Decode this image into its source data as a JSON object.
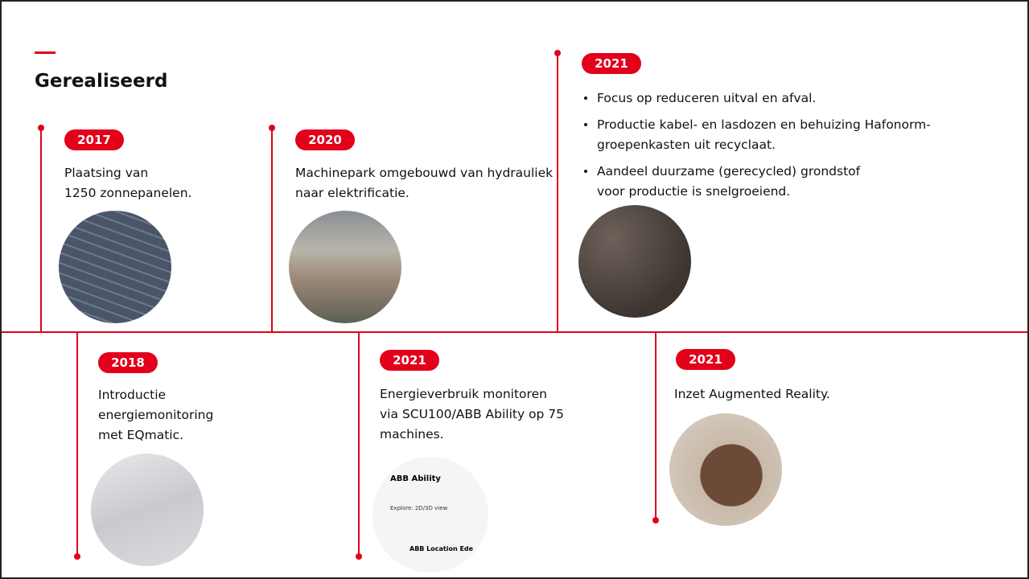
{
  "title": "Gerealiseerd",
  "items": [
    {
      "year": "2017",
      "lines": [
        "Plaatsing van",
        "1250 zonnepanelen."
      ]
    },
    {
      "year": "2020",
      "lines": [
        "Machinepark omgebouwd van hydrauliek",
        "naar elektrificatie."
      ]
    },
    {
      "year": "2021",
      "bullets": [
        [
          "Focus op reduceren uitval en afval."
        ],
        [
          "Productie kabel- en lasdozen en behuizing Hafonorm-",
          "groepenkasten uit recyclaat."
        ],
        [
          "Aandeel duurzame (gerecycled) grondstof",
          "voor productie is snelgroeiend."
        ]
      ]
    },
    {
      "year": "2018",
      "lines": [
        "Introductie",
        "energiemonitoring",
        "met EQmatic."
      ]
    },
    {
      "year": "2021",
      "lines": [
        "Energieverbruik monitoren",
        "via SCU100/ABB Ability op 75",
        "machines."
      ],
      "image_texts": [
        "ABB Ability",
        "Explore: 2D/3D view",
        "ABB Location Ede"
      ]
    },
    {
      "year": "2021",
      "lines": [
        "Inzet Augmented Reality."
      ]
    }
  ]
}
